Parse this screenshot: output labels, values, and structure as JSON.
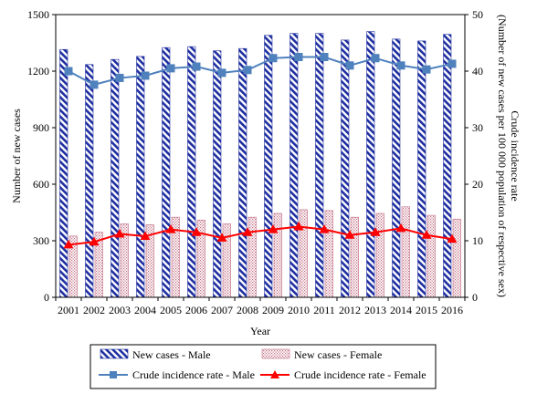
{
  "chart_data": {
    "type": "bar",
    "title": "",
    "xlabel": "Year",
    "ylabel": "Number of new cases",
    "y2label_line1": "Crude incidence rate",
    "y2label_line2": "(Number of new cases per 100 000 population of respective sex)",
    "ylim": [
      0,
      1500
    ],
    "y2lim": [
      0,
      50
    ],
    "yticks": [
      "0",
      "300",
      "600",
      "900",
      "1200",
      "1500"
    ],
    "y2ticks": [
      "0",
      "10",
      "20",
      "30",
      "40",
      "50"
    ],
    "categories": [
      "2001",
      "2002",
      "2003",
      "2004",
      "2005",
      "2006",
      "2007",
      "2008",
      "2009",
      "2010",
      "2011",
      "2012",
      "2013",
      "2014",
      "2015",
      "2016"
    ],
    "series": [
      {
        "name": "New cases - Male",
        "kind": "bar",
        "axis": "left",
        "values": [
          1315,
          1235,
          1262,
          1278,
          1325,
          1330,
          1308,
          1320,
          1390,
          1400,
          1400,
          1365,
          1410,
          1370,
          1360,
          1395
        ]
      },
      {
        "name": "New cases - Female",
        "kind": "bar",
        "axis": "left",
        "values": [
          325,
          345,
          390,
          385,
          425,
          410,
          390,
          425,
          445,
          465,
          460,
          425,
          445,
          480,
          435,
          415
        ]
      },
      {
        "name": "Crude incidence rate - Male",
        "kind": "line",
        "axis": "right",
        "color": "#4F81BD",
        "values": [
          40.0,
          37.6,
          38.8,
          39.2,
          40.5,
          40.8,
          39.7,
          40.2,
          42.3,
          42.5,
          42.5,
          41.0,
          42.3,
          41.0,
          40.3,
          41.3
        ]
      },
      {
        "name": "Crude incidence rate - Female",
        "kind": "line",
        "axis": "right",
        "color": "#FF0000",
        "values": [
          9.3,
          9.8,
          11.2,
          10.8,
          12.0,
          11.5,
          10.5,
          11.5,
          12.0,
          12.5,
          12.0,
          11.0,
          11.5,
          12.2,
          11.0,
          10.3
        ]
      }
    ],
    "legend_position": "bottom",
    "grid": false
  }
}
